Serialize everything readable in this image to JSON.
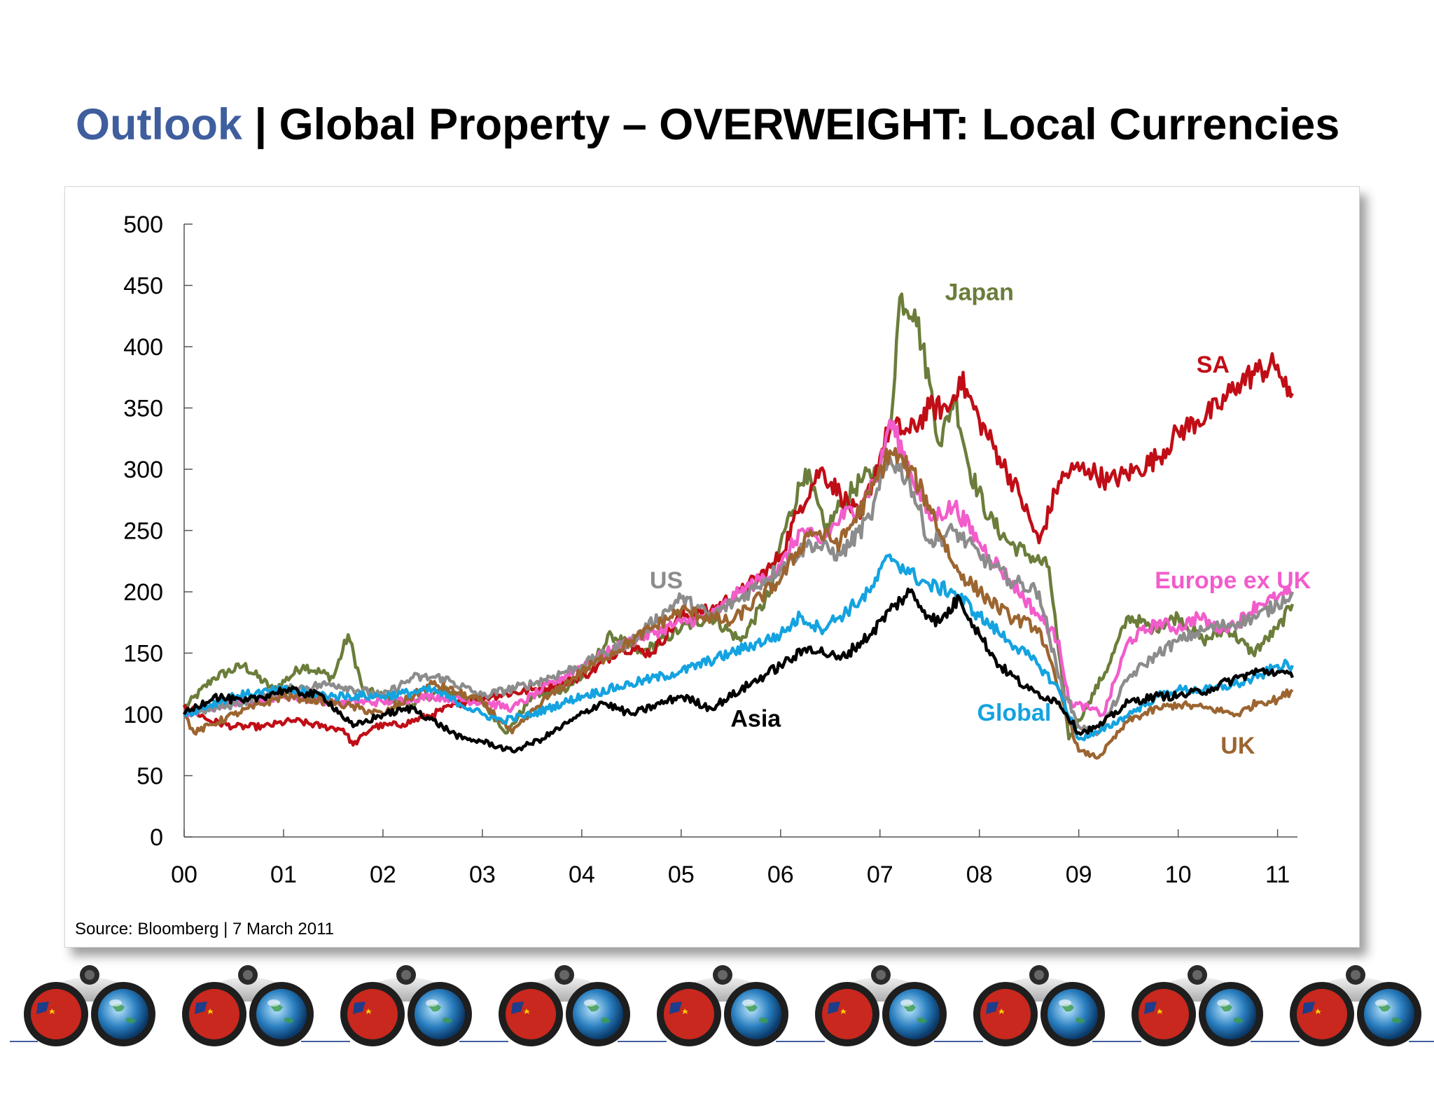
{
  "title": {
    "accent": "Outlook",
    "separator": " | ",
    "main": "Global Property – OVERWEIGHT: Local Currencies"
  },
  "source": "Source: Bloomberg | 7 March 2011",
  "chart_data": {
    "type": "line",
    "ylim": [
      0,
      500
    ],
    "yticks": [
      "0",
      "50",
      "100",
      "150",
      "200",
      "250",
      "300",
      "350",
      "400",
      "450",
      "500"
    ],
    "xlim": [
      2000.0,
      2011.2
    ],
    "xticks": [
      "00",
      "01",
      "02",
      "03",
      "04",
      "05",
      "06",
      "07",
      "08",
      "09",
      "10",
      "11"
    ],
    "series": [
      {
        "name": "Japan",
        "color": "#6b7d3a",
        "x": [
          2000.0,
          2000.3,
          2000.6,
          2000.9,
          2001.2,
          2001.5,
          2001.65,
          2001.8,
          2002.0,
          2002.3,
          2002.6,
          2003.0,
          2003.25,
          2003.5,
          2003.8,
          2004.0,
          2004.3,
          2004.6,
          2005.0,
          2005.3,
          2005.6,
          2005.9,
          2006.0,
          2006.25,
          2006.45,
          2006.6,
          2006.8,
          2007.0,
          2007.1,
          2007.2,
          2007.35,
          2007.5,
          2007.6,
          2007.75,
          2007.9,
          2008.1,
          2008.3,
          2008.5,
          2008.7,
          2008.8,
          2008.9,
          2009.1,
          2009.3,
          2009.5,
          2009.75,
          2010.0,
          2010.25,
          2010.5,
          2010.75,
          2011.0,
          2011.15
        ],
        "y": [
          105,
          130,
          140,
          120,
          140,
          130,
          165,
          120,
          115,
          108,
          120,
          110,
          85,
          115,
          120,
          130,
          165,
          150,
          170,
          180,
          160,
          200,
          240,
          300,
          250,
          270,
          290,
          300,
          330,
          440,
          430,
          370,
          320,
          360,
          300,
          260,
          240,
          230,
          220,
          150,
          80,
          110,
          140,
          180,
          170,
          180,
          160,
          170,
          150,
          170,
          190
        ]
      },
      {
        "name": "SA",
        "color": "#c00d16",
        "x": [
          2000.0,
          2000.25,
          2000.5,
          2000.8,
          2001.1,
          2001.4,
          2001.6,
          2001.7,
          2001.9,
          2002.2,
          2002.5,
          2002.8,
          2003.1,
          2003.5,
          2003.8,
          2004.1,
          2004.4,
          2004.7,
          2005.0,
          2005.3,
          2005.6,
          2005.9,
          2006.0,
          2006.2,
          2006.4,
          2006.6,
          2006.8,
          2007.0,
          2007.1,
          2007.3,
          2007.5,
          2007.7,
          2007.8,
          2008.0,
          2008.2,
          2008.4,
          2008.6,
          2008.8,
          2008.95,
          2009.1,
          2009.3,
          2009.6,
          2009.8,
          2010.0,
          2010.2,
          2010.4,
          2010.6,
          2010.8,
          2011.0,
          2011.1,
          2011.15
        ],
        "y": [
          108,
          95,
          90,
          90,
          95,
          90,
          88,
          75,
          90,
          92,
          100,
          110,
          115,
          120,
          125,
          135,
          155,
          150,
          180,
          185,
          200,
          220,
          230,
          270,
          300,
          280,
          260,
          310,
          335,
          330,
          350,
          350,
          375,
          340,
          310,
          280,
          240,
          290,
          300,
          300,
          290,
          300,
          310,
          330,
          340,
          350,
          370,
          380,
          385,
          360,
          362
        ]
      },
      {
        "name": "Europe ex UK",
        "color": "#f25ccb",
        "x": [
          2000.0,
          2000.5,
          2001.0,
          2001.5,
          2002.0,
          2002.5,
          2003.0,
          2003.3,
          2003.6,
          2004.0,
          2004.5,
          2005.0,
          2005.3,
          2005.6,
          2006.0,
          2006.2,
          2006.4,
          2006.6,
          2006.8,
          2007.0,
          2007.1,
          2007.3,
          2007.5,
          2007.75,
          2008.0,
          2008.3,
          2008.6,
          2008.8,
          2008.9,
          2009.1,
          2009.25,
          2009.5,
          2009.8,
          2010.0,
          2010.2,
          2010.4,
          2010.6,
          2010.8,
          2011.0,
          2011.15
        ],
        "y": [
          100,
          110,
          115,
          110,
          110,
          115,
          110,
          105,
          120,
          140,
          160,
          175,
          180,
          200,
          220,
          250,
          240,
          260,
          270,
          300,
          340,
          300,
          260,
          270,
          240,
          210,
          180,
          160,
          110,
          105,
          100,
          160,
          175,
          170,
          180,
          170,
          175,
          190,
          195,
          200
        ]
      },
      {
        "name": "US",
        "color": "#8c8c8c",
        "x": [
          2000.0,
          2000.5,
          2001.0,
          2001.5,
          2002.0,
          2002.3,
          2002.6,
          2003.0,
          2003.5,
          2004.0,
          2004.5,
          2005.0,
          2005.3,
          2005.6,
          2006.0,
          2006.3,
          2006.6,
          2006.9,
          2007.1,
          2007.3,
          2007.5,
          2007.75,
          2008.0,
          2008.3,
          2008.6,
          2008.8,
          2009.0,
          2009.2,
          2009.5,
          2009.8,
          2010.0,
          2010.3,
          2010.6,
          2010.8,
          2011.0,
          2011.15
        ],
        "y": [
          100,
          108,
          120,
          125,
          115,
          130,
          130,
          115,
          125,
          140,
          160,
          195,
          180,
          195,
          220,
          240,
          230,
          260,
          310,
          290,
          240,
          250,
          230,
          210,
          200,
          130,
          90,
          85,
          130,
          150,
          160,
          170,
          175,
          180,
          190,
          200
        ]
      },
      {
        "name": "UK",
        "color": "#9c6530",
        "x": [
          2000.0,
          2000.1,
          2000.5,
          2001.0,
          2001.5,
          2002.0,
          2002.5,
          2003.0,
          2003.3,
          2003.6,
          2004.0,
          2004.5,
          2005.0,
          2005.5,
          2006.0,
          2006.3,
          2006.6,
          2006.9,
          2007.1,
          2007.3,
          2007.5,
          2007.75,
          2008.0,
          2008.3,
          2008.6,
          2008.8,
          2009.0,
          2009.2,
          2009.5,
          2009.8,
          2010.0,
          2010.3,
          2010.6,
          2010.8,
          2011.0,
          2011.15
        ],
        "y": [
          100,
          85,
          100,
          115,
          110,
          100,
          125,
          110,
          85,
          110,
          135,
          160,
          185,
          175,
          210,
          250,
          240,
          280,
          315,
          300,
          270,
          220,
          200,
          180,
          170,
          120,
          70,
          65,
          95,
          105,
          108,
          105,
          100,
          110,
          112,
          120
        ]
      },
      {
        "name": "Global",
        "color": "#14a3e0",
        "x": [
          2000.0,
          2000.5,
          2001.0,
          2001.5,
          2002.0,
          2002.5,
          2003.0,
          2003.2,
          2003.5,
          2004.0,
          2004.5,
          2005.0,
          2005.5,
          2006.0,
          2006.2,
          2006.4,
          2006.6,
          2006.9,
          2007.1,
          2007.3,
          2007.5,
          2007.75,
          2008.0,
          2008.3,
          2008.6,
          2008.8,
          2009.0,
          2009.2,
          2009.5,
          2009.8,
          2010.0,
          2010.3,
          2010.6,
          2010.8,
          2011.0,
          2011.15
        ],
        "y": [
          100,
          115,
          120,
          115,
          115,
          120,
          100,
          95,
          100,
          115,
          125,
          135,
          150,
          165,
          180,
          170,
          180,
          200,
          230,
          215,
          205,
          200,
          180,
          160,
          140,
          120,
          80,
          85,
          100,
          115,
          120,
          120,
          125,
          130,
          140,
          140
        ]
      },
      {
        "name": "Asia",
        "color": "#000000",
        "x": [
          2000.0,
          2000.3,
          2000.6,
          2001.0,
          2001.4,
          2001.7,
          2002.0,
          2002.3,
          2002.6,
          2002.8,
          2003.0,
          2003.3,
          2003.6,
          2003.9,
          2004.2,
          2004.5,
          2005.0,
          2005.3,
          2005.6,
          2006.0,
          2006.3,
          2006.6,
          2006.9,
          2007.1,
          2007.3,
          2007.5,
          2007.6,
          2007.8,
          2008.0,
          2008.2,
          2008.5,
          2008.8,
          2009.0,
          2009.2,
          2009.5,
          2009.8,
          2010.0,
          2010.3,
          2010.6,
          2010.8,
          2011.0,
          2011.15
        ],
        "y": [
          100,
          115,
          110,
          120,
          115,
          90,
          100,
          105,
          90,
          80,
          78,
          70,
          80,
          95,
          110,
          100,
          115,
          105,
          120,
          140,
          155,
          145,
          165,
          185,
          200,
          180,
          175,
          195,
          165,
          140,
          120,
          110,
          85,
          90,
          110,
          115,
          115,
          120,
          130,
          135,
          135,
          130
        ]
      }
    ],
    "labels": [
      {
        "text": "Japan",
        "color": "#6b7d3a",
        "x": 2008.0,
        "y": 438
      },
      {
        "text": "SA",
        "color": "#c00d16",
        "x": 2010.35,
        "y": 379
      },
      {
        "text": "US",
        "color": "#8c8c8c",
        "x": 2004.85,
        "y": 203
      },
      {
        "text": "Europe ex UK",
        "color": "#f25ccb",
        "x": 2010.55,
        "y": 203
      },
      {
        "text": "Asia",
        "color": "#000000",
        "x": 2005.75,
        "y": 90
      },
      {
        "text": "Global",
        "color": "#14a3e0",
        "x": 2008.35,
        "y": 95
      },
      {
        "text": "UK",
        "color": "#9c6530",
        "x": 2010.6,
        "y": 68
      }
    ]
  }
}
